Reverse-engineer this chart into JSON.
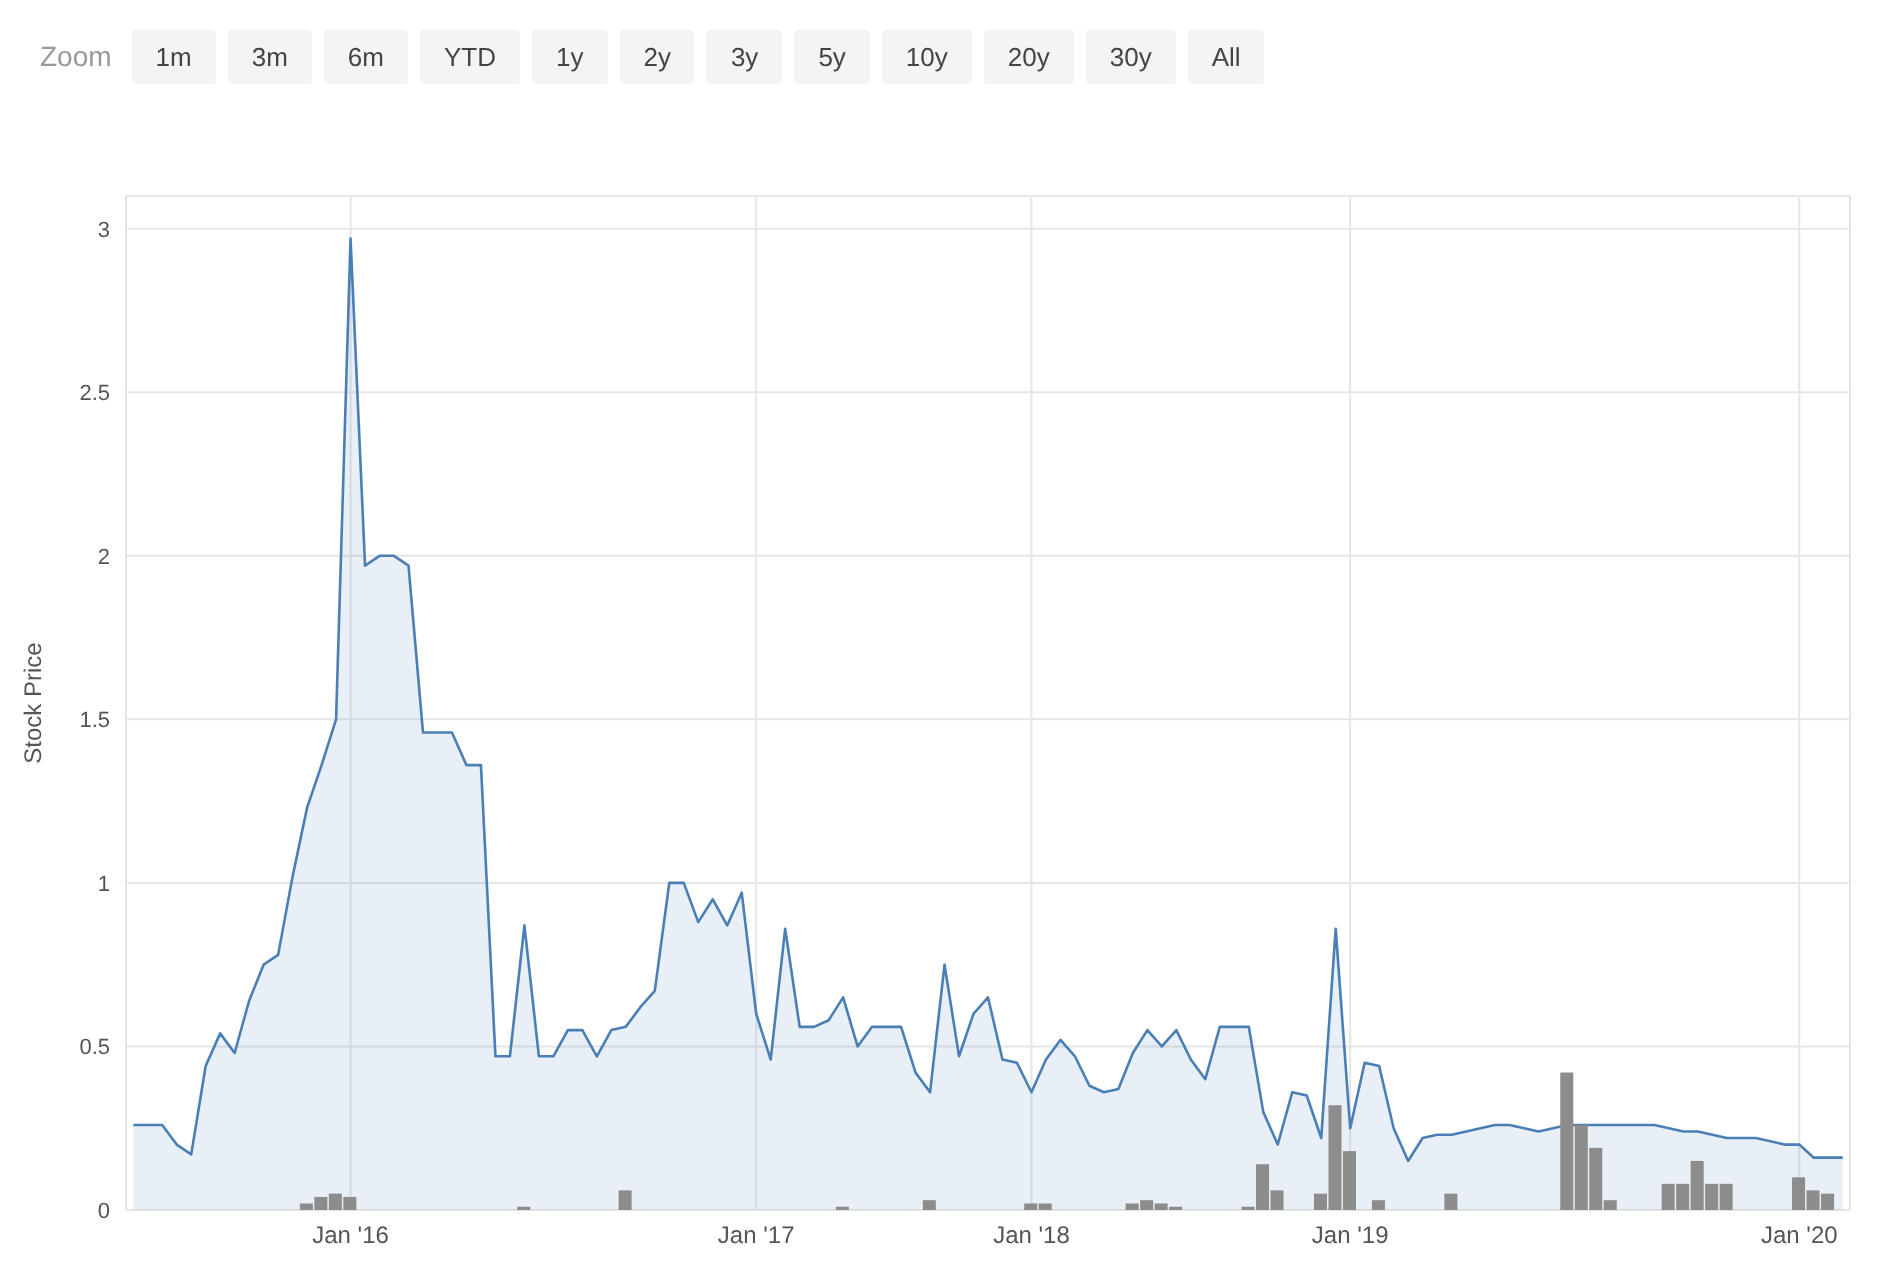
{
  "chart_data": {
    "type": "area",
    "ylabel": "Stock Price",
    "annotations": [
      "Zoom",
      "1m",
      "3m",
      "6m",
      "YTD",
      "1y",
      "2y",
      "3y",
      "5y",
      "10y",
      "20y",
      "30y",
      "All"
    ],
    "categories": [
      null,
      null,
      null,
      null,
      null,
      null,
      null,
      null,
      null,
      null,
      null,
      null,
      null,
      null,
      null,
      "Jan '16",
      null,
      null,
      null,
      null,
      null,
      null,
      null,
      null,
      null,
      null,
      null,
      null,
      null,
      null,
      null,
      null,
      null,
      null,
      null,
      null,
      null,
      null,
      null,
      null,
      null,
      null,
      null,
      "Jan '17",
      null,
      null,
      null,
      null,
      null,
      null,
      null,
      null,
      null,
      null,
      null,
      null,
      null,
      null,
      null,
      null,
      null,
      null,
      "Jan '18",
      null,
      null,
      null,
      null,
      null,
      null,
      null,
      null,
      null,
      null,
      null,
      null,
      null,
      null,
      null,
      null,
      null,
      null,
      null,
      null,
      null,
      "Jan '19",
      null,
      null,
      null,
      null,
      null,
      null,
      null,
      null,
      null,
      null,
      null,
      null,
      null,
      null,
      null,
      null,
      null,
      null,
      null,
      null,
      null,
      null,
      null,
      null,
      null,
      null,
      null,
      null,
      null,
      null,
      "Jan '20",
      null,
      null,
      null
    ],
    "series": [
      {
        "color": "#4a7fb5",
        "values": [
          0.26,
          0.26,
          0.26,
          0.2,
          0.17,
          0.44,
          0.54,
          0.48,
          0.64,
          0.75,
          0.78,
          1.02,
          1.23,
          1.36,
          1.5,
          2.97,
          1.97,
          2,
          2,
          1.97,
          1.46,
          1.46,
          1.46,
          1.36,
          1.36,
          0.47,
          0.47,
          0.87,
          0.47,
          0.47,
          0.55,
          0.55,
          0.47,
          0.55,
          0.56,
          0.62,
          0.67,
          1.0,
          1.0,
          0.88,
          0.95,
          0.87,
          0.97,
          0.6,
          0.46,
          0.86,
          0.56,
          0.56,
          0.58,
          0.65,
          0.5,
          0.56,
          0.56,
          0.56,
          0.42,
          0.36,
          0.75,
          0.47,
          0.6,
          0.65,
          0.46,
          0.45,
          0.36,
          0.46,
          0.52,
          0.47,
          0.38,
          0.36,
          0.37,
          0.48,
          0.55,
          0.5,
          0.55,
          0.46,
          0.4,
          0.56,
          0.56,
          0.56,
          0.3,
          0.2,
          0.36,
          0.35,
          0.22,
          0.86,
          0.25,
          0.45,
          0.44,
          0.25,
          0.15,
          0.22,
          0.23,
          0.23,
          0.24,
          0.25,
          0.26,
          0.26,
          0.25,
          0.24,
          0.25,
          0.26,
          0.26,
          0.26,
          0.26,
          0.26,
          0.26,
          0.26,
          0.25,
          0.24,
          0.24,
          0.23,
          0.22,
          0.22,
          0.22,
          0.21,
          0.2,
          0.2,
          0.16,
          0.16,
          0.16
        ]
      },
      {
        "type": "bar",
        "color": "#8c8c8c",
        "values": [
          null,
          null,
          null,
          null,
          null,
          null,
          null,
          null,
          null,
          null,
          null,
          null,
          0.02,
          0.04,
          0.05,
          0.04,
          null,
          null,
          null,
          null,
          null,
          null,
          null,
          null,
          null,
          null,
          null,
          0.01,
          null,
          null,
          null,
          null,
          null,
          null,
          0.06,
          null,
          null,
          null,
          null,
          null,
          null,
          null,
          null,
          null,
          null,
          null,
          null,
          null,
          null,
          0.01,
          null,
          null,
          null,
          null,
          null,
          0.03,
          null,
          null,
          null,
          null,
          null,
          null,
          0.02,
          0.02,
          null,
          null,
          null,
          null,
          null,
          0.02,
          0.03,
          0.02,
          0.01,
          null,
          null,
          null,
          null,
          0.01,
          0.14,
          0.06,
          null,
          null,
          0.05,
          0.32,
          0.18,
          null,
          0.03,
          null,
          null,
          null,
          null,
          0.05,
          null,
          null,
          null,
          null,
          null,
          null,
          null,
          0.42,
          0.26,
          0.19,
          0.03,
          null,
          null,
          null,
          0.08,
          0.08,
          0.15,
          0.08,
          0.08,
          null,
          null,
          null,
          null,
          0.1,
          0.06,
          0.05,
          null
        ]
      }
    ],
    "ylim": [
      0,
      3.1
    ],
    "yticks": [
      0,
      0.5,
      1,
      1.5,
      2,
      2.5,
      3
    ],
    "grid": true
  }
}
